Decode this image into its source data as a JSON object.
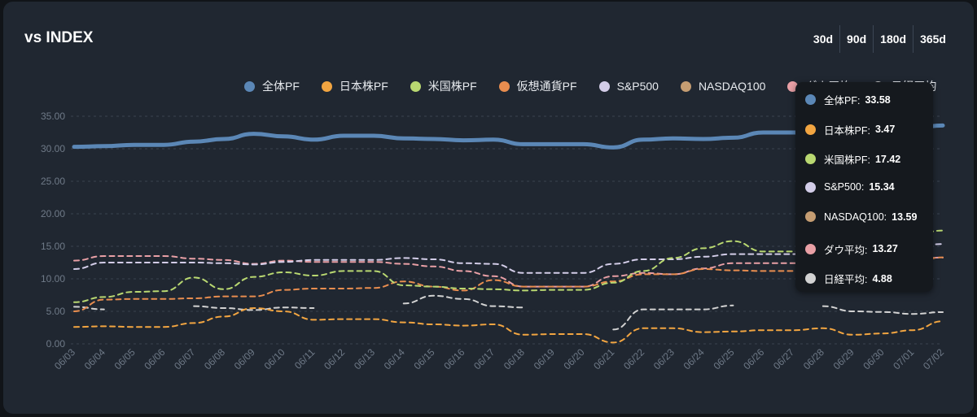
{
  "header": {
    "title": "vs INDEX"
  },
  "range_buttons": [
    "30d",
    "90d",
    "180d",
    "365d"
  ],
  "colors": {
    "card": "#202731",
    "grid": "#3a4350",
    "axis_text": "#6f7a88",
    "tooltip_bg": "#15191e"
  },
  "chart_data": {
    "type": "line",
    "title": "vs INDEX",
    "ylim": [
      0,
      35
    ],
    "yticks": [
      "0.00",
      "5.00",
      "10.00",
      "15.00",
      "20.00",
      "25.00",
      "30.00",
      "35.00"
    ],
    "grid": "horizontal dashed",
    "legend_position": "top-right",
    "categories": [
      "06/03",
      "06/04",
      "06/05",
      "06/06",
      "06/07",
      "06/08",
      "06/09",
      "06/10",
      "06/11",
      "06/12",
      "06/13",
      "06/14",
      "06/15",
      "06/16",
      "06/17",
      "06/18",
      "06/19",
      "06/20",
      "06/21",
      "06/22",
      "06/23",
      "06/24",
      "06/25",
      "06/26",
      "06/27",
      "06/28",
      "06/29",
      "06/30",
      "07/01",
      "07/02"
    ],
    "series": [
      {
        "name": "全体PF",
        "color": "#5b87b6",
        "style": "solid",
        "values": [
          30.3,
          30.4,
          30.6,
          30.6,
          31.1,
          31.5,
          32.3,
          31.9,
          31.4,
          32.0,
          32.0,
          31.6,
          31.5,
          31.3,
          31.4,
          30.7,
          30.7,
          30.7,
          30.2,
          31.4,
          31.6,
          31.5,
          31.7,
          32.5,
          32.5,
          32.5,
          32.6,
          32.8,
          33.2,
          33.58
        ]
      },
      {
        "name": "日本株PF",
        "color": "#f2a541",
        "style": "dashed",
        "values": [
          2.6,
          2.7,
          2.6,
          2.6,
          3.2,
          4.2,
          5.5,
          5.0,
          3.7,
          3.8,
          3.8,
          3.3,
          3.0,
          2.8,
          3.0,
          1.4,
          1.5,
          1.5,
          0.2,
          2.4,
          2.4,
          1.8,
          1.9,
          2.1,
          2.1,
          2.4,
          1.4,
          1.6,
          2.1,
          3.47
        ]
      },
      {
        "name": "米国株PF",
        "color": "#b9d871",
        "style": "dashed",
        "values": [
          6.4,
          7.2,
          8.0,
          8.1,
          10.2,
          8.4,
          10.3,
          11.0,
          10.5,
          11.2,
          11.2,
          9.0,
          8.8,
          8.5,
          8.4,
          8.2,
          8.3,
          8.3,
          9.4,
          11.2,
          13.2,
          14.7,
          15.8,
          14.2,
          14.2,
          14.5,
          15.2,
          16.0,
          16.8,
          17.42
        ]
      },
      {
        "name": "仮想通貨PF",
        "color": "#e88d4f",
        "style": "dashed",
        "values": [
          5.0,
          6.8,
          6.9,
          6.9,
          7.0,
          7.3,
          7.3,
          8.3,
          8.5,
          8.5,
          8.6,
          9.6,
          8.8,
          8.2,
          9.8,
          8.8,
          8.8,
          8.8,
          9.6,
          10.7,
          10.7,
          11.5,
          11.3,
          11.2,
          11.2,
          11.3,
          11.6,
          12.0,
          12.5,
          13.3
        ]
      },
      {
        "name": "S&P500",
        "color": "#d3cde8",
        "style": "dashed",
        "values": [
          11.5,
          12.5,
          12.5,
          12.5,
          12.5,
          12.4,
          12.2,
          12.6,
          12.9,
          12.9,
          12.9,
          13.2,
          13.0,
          12.4,
          12.3,
          10.9,
          10.9,
          10.9,
          12.3,
          13.0,
          13.0,
          13.4,
          13.8,
          13.8,
          13.8,
          14.0,
          14.3,
          14.6,
          15.0,
          15.34
        ]
      },
      {
        "name": "NASDAQ100",
        "color": "#c59d72",
        "style": "dashed",
        "values": [
          null,
          null,
          null,
          null,
          null,
          null,
          null,
          null,
          null,
          null,
          null,
          null,
          null,
          null,
          null,
          null,
          null,
          null,
          null,
          null,
          null,
          null,
          null,
          null,
          null,
          null,
          null,
          null,
          null,
          13.59
        ]
      },
      {
        "name": "ダウ平均",
        "color": "#e9a0a6",
        "style": "dashed",
        "values": [
          12.8,
          13.5,
          13.5,
          13.5,
          13.1,
          12.9,
          12.3,
          12.8,
          12.6,
          12.6,
          12.6,
          12.3,
          11.9,
          11.2,
          10.4,
          8.8,
          8.8,
          8.8,
          10.4,
          10.9,
          10.7,
          11.6,
          12.4,
          12.4,
          12.4,
          12.5,
          12.7,
          12.9,
          13.1,
          13.27
        ]
      },
      {
        "name": "日経平均",
        "color": "#d2d2d2",
        "style": "dashed",
        "values": [
          5.7,
          5.3,
          null,
          null,
          5.8,
          5.5,
          5.2,
          5.6,
          5.5,
          null,
          null,
          6.2,
          7.4,
          6.9,
          5.8,
          5.6,
          null,
          null,
          2.2,
          5.3,
          5.3,
          5.3,
          5.9,
          null,
          null,
          5.8,
          5.0,
          4.9,
          4.6,
          4.88
        ]
      }
    ],
    "tooltip": [
      {
        "label": "全体PF:",
        "value": "33.58",
        "color": "#5b87b6"
      },
      {
        "label": "日本株PF:",
        "value": "3.47",
        "color": "#f2a541"
      },
      {
        "label": "米国株PF:",
        "value": "17.42",
        "color": "#b9d871"
      },
      {
        "label": "S&P500:",
        "value": "15.34",
        "color": "#d3cde8"
      },
      {
        "label": "NASDAQ100:",
        "value": "13.59",
        "color": "#c59d72"
      },
      {
        "label": "ダウ平均:",
        "value": "13.27",
        "color": "#e9a0a6"
      },
      {
        "label": "日経平均:",
        "value": "4.88",
        "color": "#d2d2d2"
      }
    ]
  }
}
